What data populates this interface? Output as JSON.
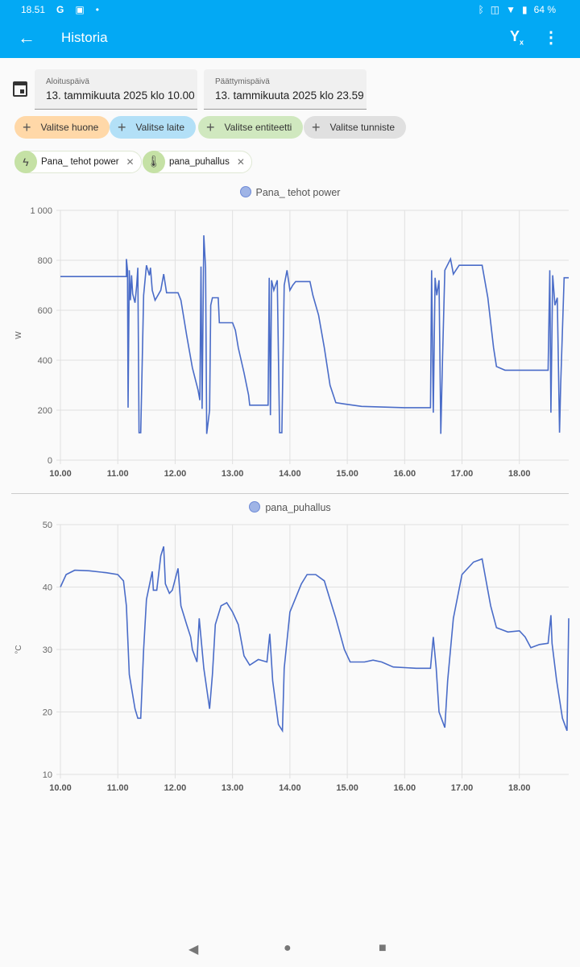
{
  "status_bar": {
    "time": "18.51",
    "battery": "64 %"
  },
  "app_bar": {
    "title": "Historia",
    "back_icon": "arrow-left-icon",
    "filter_icon": "filter-remove-icon",
    "more_icon": "more-vert-icon"
  },
  "date_range": {
    "start_label": "Aloituspäivä",
    "start_value": "13. tammikuuta 2025 klo 10.00",
    "end_label": "Päättymispäivä",
    "end_value": "13. tammikuuta 2025 klo 23.59"
  },
  "pickers": [
    {
      "label": "Valitse huone",
      "color": "#ffd8a8"
    },
    {
      "label": "Valitse laite",
      "color": "#b3e0f7"
    },
    {
      "label": "Valitse entiteetti",
      "color": "#d0e8bf"
    },
    {
      "label": "Valitse tunniste",
      "color": "#e0e0e0"
    }
  ],
  "entities": [
    {
      "label": "Pana_ tehot power",
      "icon": "flash-icon"
    },
    {
      "label": "pana_puhallus",
      "icon": "thermometer-icon"
    }
  ],
  "chart_data": [
    {
      "type": "line",
      "title": "Pana_ tehot power",
      "ylabel": "W",
      "ylim": [
        0,
        1000
      ],
      "yticks": [
        0,
        200,
        400,
        600,
        800,
        1000
      ],
      "ytick_labels": [
        "0",
        "200",
        "400",
        "600",
        "800",
        "1 000"
      ],
      "xlim": [
        10,
        18.86
      ],
      "xticks": [
        10,
        11,
        12,
        13,
        14,
        15,
        16,
        17,
        18
      ],
      "xtick_labels": [
        "10.00",
        "11.00",
        "12.00",
        "13.00",
        "14.00",
        "15.00",
        "16.00",
        "17.00",
        "18.00"
      ],
      "color": "#4a6cc8",
      "points": [
        [
          10,
          735
        ],
        [
          11.15,
          735
        ],
        [
          11.15,
          805
        ],
        [
          11.17,
          760
        ],
        [
          11.18,
          210
        ],
        [
          11.2,
          760
        ],
        [
          11.22,
          640
        ],
        [
          11.24,
          740
        ],
        [
          11.26,
          665
        ],
        [
          11.3,
          630
        ],
        [
          11.33,
          700
        ],
        [
          11.35,
          770
        ],
        [
          11.37,
          110
        ],
        [
          11.4,
          110
        ],
        [
          11.45,
          660
        ],
        [
          11.5,
          780
        ],
        [
          11.55,
          740
        ],
        [
          11.57,
          770
        ],
        [
          11.6,
          680
        ],
        [
          11.65,
          640
        ],
        [
          11.75,
          680
        ],
        [
          11.8,
          745
        ],
        [
          11.85,
          670
        ],
        [
          12.05,
          670
        ],
        [
          12.1,
          640
        ],
        [
          12.2,
          500
        ],
        [
          12.3,
          370
        ],
        [
          12.4,
          280
        ],
        [
          12.43,
          240
        ],
        [
          12.45,
          775
        ],
        [
          12.47,
          205
        ],
        [
          12.5,
          900
        ],
        [
          12.53,
          770
        ],
        [
          12.55,
          105
        ],
        [
          12.6,
          200
        ],
        [
          12.62,
          620
        ],
        [
          12.65,
          650
        ],
        [
          12.75,
          650
        ],
        [
          12.77,
          550
        ],
        [
          13,
          550
        ],
        [
          13.05,
          520
        ],
        [
          13.1,
          450
        ],
        [
          13.2,
          350
        ],
        [
          13.28,
          260
        ],
        [
          13.3,
          220
        ],
        [
          13.62,
          220
        ],
        [
          13.64,
          730
        ],
        [
          13.66,
          180
        ],
        [
          13.68,
          720
        ],
        [
          13.72,
          680
        ],
        [
          13.78,
          720
        ],
        [
          13.82,
          110
        ],
        [
          13.86,
          110
        ],
        [
          13.9,
          700
        ],
        [
          13.95,
          760
        ],
        [
          14,
          680
        ],
        [
          14.05,
          700
        ],
        [
          14.1,
          715
        ],
        [
          14.35,
          715
        ],
        [
          14.4,
          660
        ],
        [
          14.5,
          580
        ],
        [
          14.6,
          450
        ],
        [
          14.7,
          300
        ],
        [
          14.8,
          230
        ],
        [
          14.95,
          225
        ],
        [
          15.25,
          215
        ],
        [
          16,
          210
        ],
        [
          16.45,
          210
        ],
        [
          16.47,
          760
        ],
        [
          16.5,
          190
        ],
        [
          16.53,
          730
        ],
        [
          16.56,
          660
        ],
        [
          16.6,
          720
        ],
        [
          16.63,
          105
        ],
        [
          16.66,
          400
        ],
        [
          16.7,
          760
        ],
        [
          16.8,
          805
        ],
        [
          16.85,
          745
        ],
        [
          16.95,
          780
        ],
        [
          17.35,
          780
        ],
        [
          17.45,
          650
        ],
        [
          17.55,
          450
        ],
        [
          17.6,
          375
        ],
        [
          17.75,
          360
        ],
        [
          18.5,
          360
        ],
        [
          18.53,
          760
        ],
        [
          18.55,
          190
        ],
        [
          18.58,
          740
        ],
        [
          18.62,
          620
        ],
        [
          18.66,
          650
        ],
        [
          18.7,
          110
        ],
        [
          18.72,
          300
        ],
        [
          18.78,
          730
        ],
        [
          18.86,
          730
        ]
      ]
    },
    {
      "type": "line",
      "title": "pana_puhallus",
      "ylabel": "°C",
      "ylim": [
        10,
        50
      ],
      "yticks": [
        10,
        20,
        30,
        40,
        50
      ],
      "ytick_labels": [
        "10",
        "20",
        "30",
        "40",
        "50"
      ],
      "xlim": [
        10,
        18.86
      ],
      "xticks": [
        10,
        11,
        12,
        13,
        14,
        15,
        16,
        17,
        18
      ],
      "xtick_labels": [
        "10.00",
        "11.00",
        "12.00",
        "13.00",
        "14.00",
        "15.00",
        "16.00",
        "17.00",
        "18.00"
      ],
      "color": "#4a6cc8",
      "points": [
        [
          10,
          40
        ],
        [
          10.1,
          42
        ],
        [
          10.25,
          42.7
        ],
        [
          10.5,
          42.6
        ],
        [
          10.8,
          42.3
        ],
        [
          11,
          42
        ],
        [
          11.1,
          41
        ],
        [
          11.15,
          37
        ],
        [
          11.2,
          26
        ],
        [
          11.3,
          20.5
        ],
        [
          11.35,
          19
        ],
        [
          11.4,
          19
        ],
        [
          11.45,
          30
        ],
        [
          11.5,
          38
        ],
        [
          11.6,
          42.5
        ],
        [
          11.62,
          39.5
        ],
        [
          11.68,
          39.5
        ],
        [
          11.75,
          45
        ],
        [
          11.8,
          46.5
        ],
        [
          11.83,
          40.5
        ],
        [
          11.9,
          39
        ],
        [
          11.95,
          39.5
        ],
        [
          12.05,
          43
        ],
        [
          12.1,
          37
        ],
        [
          12.2,
          34
        ],
        [
          12.27,
          32
        ],
        [
          12.3,
          30
        ],
        [
          12.38,
          28
        ],
        [
          12.42,
          35
        ],
        [
          12.5,
          27
        ],
        [
          12.6,
          20.5
        ],
        [
          12.65,
          26
        ],
        [
          12.7,
          34
        ],
        [
          12.8,
          37
        ],
        [
          12.9,
          37.5
        ],
        [
          13,
          36
        ],
        [
          13.1,
          34
        ],
        [
          13.2,
          29
        ],
        [
          13.3,
          27.5
        ],
        [
          13.45,
          28.4
        ],
        [
          13.6,
          28
        ],
        [
          13.65,
          32.5
        ],
        [
          13.7,
          25
        ],
        [
          13.8,
          18
        ],
        [
          13.87,
          17
        ],
        [
          13.9,
          27
        ],
        [
          14,
          36
        ],
        [
          14.2,
          40.5
        ],
        [
          14.3,
          42
        ],
        [
          14.45,
          42
        ],
        [
          14.6,
          41
        ],
        [
          14.7,
          38
        ],
        [
          14.8,
          35
        ],
        [
          14.95,
          30
        ],
        [
          15.05,
          28
        ],
        [
          15.3,
          28
        ],
        [
          15.45,
          28.3
        ],
        [
          15.6,
          28
        ],
        [
          15.8,
          27.2
        ],
        [
          16.2,
          27
        ],
        [
          16.45,
          27
        ],
        [
          16.5,
          32
        ],
        [
          16.55,
          27
        ],
        [
          16.6,
          20
        ],
        [
          16.7,
          17.5
        ],
        [
          16.75,
          25
        ],
        [
          16.85,
          35
        ],
        [
          17,
          42
        ],
        [
          17.2,
          44
        ],
        [
          17.35,
          44.5
        ],
        [
          17.4,
          42
        ],
        [
          17.5,
          37
        ],
        [
          17.6,
          33.5
        ],
        [
          17.8,
          32.8
        ],
        [
          18,
          33
        ],
        [
          18.1,
          32
        ],
        [
          18.2,
          30.3
        ],
        [
          18.35,
          30.8
        ],
        [
          18.5,
          31
        ],
        [
          18.55,
          35.5
        ],
        [
          18.57,
          31
        ],
        [
          18.65,
          25
        ],
        [
          18.75,
          19
        ],
        [
          18.83,
          17
        ],
        [
          18.86,
          35
        ]
      ]
    }
  ]
}
